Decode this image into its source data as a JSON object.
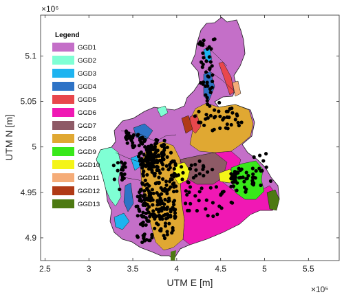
{
  "chart_data": {
    "type": "map",
    "xlabel": "UTM E [m]",
    "ylabel": "UTM N [m]",
    "x_exponent": "×10⁵",
    "y_exponent": "×10⁶",
    "xlim": [
      2.45,
      5.85
    ],
    "ylim": [
      4.875,
      5.145
    ],
    "xticks": [
      "2.5",
      "3",
      "3.5",
      "4",
      "4.5",
      "5",
      "5.5"
    ],
    "xtick_values": [
      2.5,
      3.0,
      3.5,
      4.0,
      4.5,
      5.0,
      5.5
    ],
    "yticks": [
      "4.9",
      "4.95",
      "5",
      "5.05",
      "5.1"
    ],
    "ytick_values": [
      4.9,
      4.95,
      5.0,
      5.05,
      5.1
    ],
    "legend": {
      "title": "Legend",
      "position": "top-left",
      "items": [
        {
          "label": "GGD1",
          "color": "#c46fc8"
        },
        {
          "label": "GGD2",
          "color": "#7fffd4"
        },
        {
          "label": "GGD3",
          "color": "#1eb4f0"
        },
        {
          "label": "GGD4",
          "color": "#2e73c6"
        },
        {
          "label": "GGD5",
          "color": "#e8474c"
        },
        {
          "label": "GGD6",
          "color": "#f018b4"
        },
        {
          "label": "GGD7",
          "color": "#8e5a66"
        },
        {
          "label": "GGD8",
          "color": "#e0a832"
        },
        {
          "label": "GGD9",
          "color": "#38e81a"
        },
        {
          "label": "GGD10",
          "color": "#f4f418"
        },
        {
          "label": "GGD11",
          "color": "#f5ac78"
        },
        {
          "label": "GGD12",
          "color": "#b03a16"
        },
        {
          "label": "GGD13",
          "color": "#4d7a12"
        }
      ]
    },
    "grid": false
  }
}
